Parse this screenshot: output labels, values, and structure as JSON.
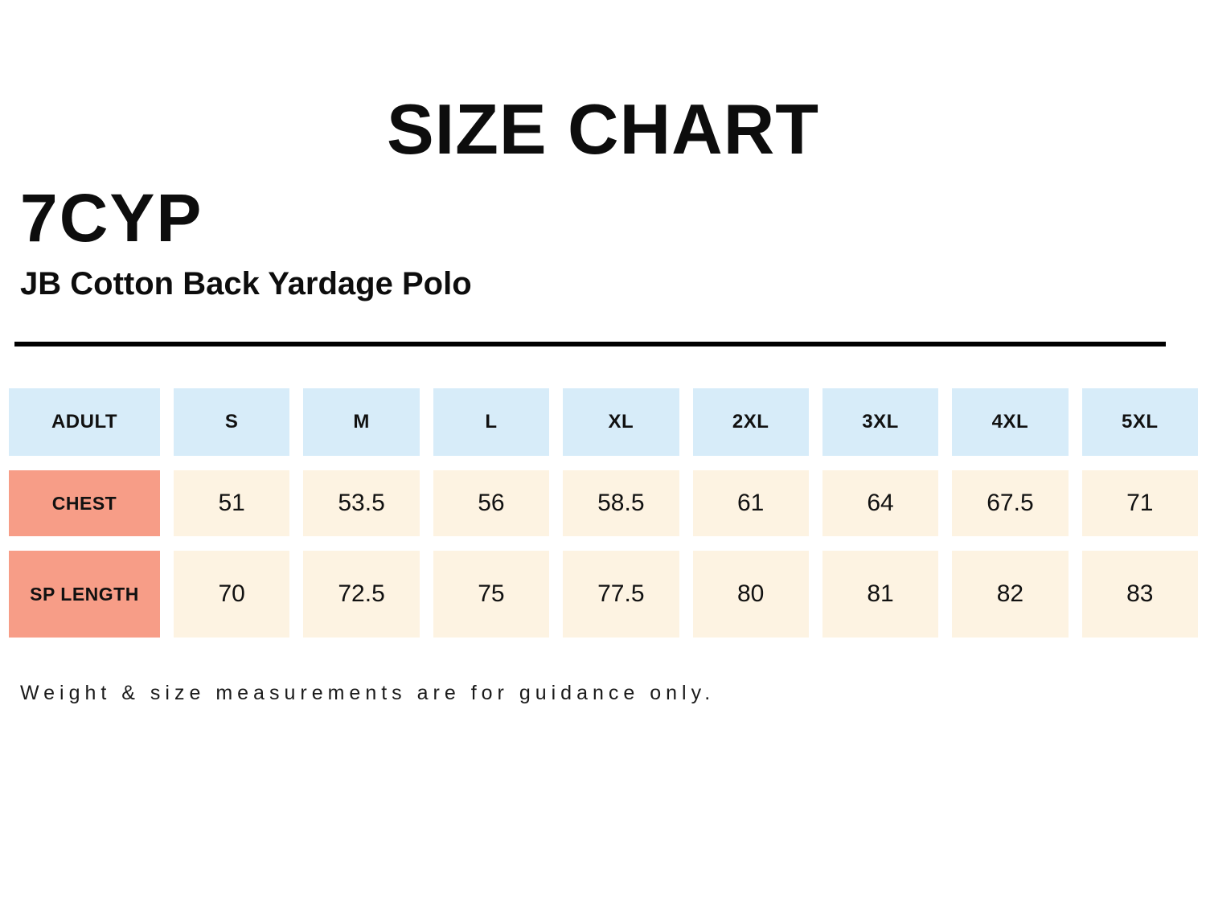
{
  "title": "SIZE CHART",
  "product": {
    "code": "7CYP",
    "name": "JB Cotton Back Yardage Polo"
  },
  "chart_data": {
    "type": "table",
    "title": "SIZE CHART",
    "columns": [
      "ADULT",
      "S",
      "M",
      "L",
      "XL",
      "2XL",
      "3XL",
      "4XL",
      "5XL"
    ],
    "rows": [
      {
        "label": "CHEST",
        "values": [
          51,
          53.5,
          56,
          58.5,
          61,
          64,
          67.5,
          71
        ]
      },
      {
        "label": "SP LENGTH",
        "values": [
          70,
          72.5,
          75,
          77.5,
          80,
          81,
          82,
          83
        ]
      }
    ]
  },
  "footer_note": "Weight & size measurements are for guidance only.",
  "colors": {
    "header_bg": "#d7ecf9",
    "label_bg": "#f79d87",
    "value_bg": "#fdf3e2",
    "divider": "#000000",
    "text": "#111111"
  }
}
